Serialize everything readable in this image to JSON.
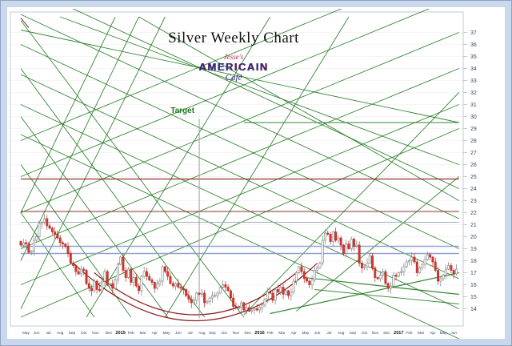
{
  "title": "Silver Weekly Chart",
  "logo": {
    "top": "Jesse's",
    "main": "AMERICAIN",
    "sub": "Café"
  },
  "chart_data": {
    "type": "candlestick",
    "title": "Silver Weekly Chart",
    "instrument": "Silver",
    "timeframe": "Weekly",
    "ylim": [
      13.3,
      38.3
    ],
    "y_ticks": [
      37,
      36,
      35,
      34,
      33,
      32,
      31,
      30,
      29,
      28,
      27,
      26,
      25,
      24,
      23,
      22,
      21,
      20,
      19,
      18,
      17,
      16,
      15,
      14
    ],
    "x_axis_months": [
      {
        "label": "May",
        "weeks": 4,
        "bold": false
      },
      {
        "label": "Jun",
        "weeks": 4,
        "bold": false
      },
      {
        "label": "Jul",
        "weeks": 5,
        "bold": false
      },
      {
        "label": "Aug",
        "weeks": 4,
        "bold": false
      },
      {
        "label": "Sep",
        "weeks": 5,
        "bold": false
      },
      {
        "label": "Oct",
        "weeks": 4,
        "bold": false
      },
      {
        "label": "Nov",
        "weeks": 5,
        "bold": false
      },
      {
        "label": "Dec",
        "weeks": 5,
        "bold": false
      },
      {
        "label": "2015",
        "weeks": 4,
        "bold": true
      },
      {
        "label": "Feb",
        "weeks": 4,
        "bold": false
      },
      {
        "label": "Mar",
        "weeks": 5,
        "bold": false
      },
      {
        "label": "Apr",
        "weeks": 4,
        "bold": false
      },
      {
        "label": "May",
        "weeks": 5,
        "bold": false
      },
      {
        "label": "Jun",
        "weeks": 4,
        "bold": false
      },
      {
        "label": "Jul",
        "weeks": 5,
        "bold": false
      },
      {
        "label": "Aug",
        "weeks": 4,
        "bold": false
      },
      {
        "label": "Sep",
        "weeks": 4,
        "bold": false
      },
      {
        "label": "Oct",
        "weeks": 5,
        "bold": false
      },
      {
        "label": "Nov",
        "weeks": 4,
        "bold": false
      },
      {
        "label": "Dec",
        "weeks": 5,
        "bold": false
      },
      {
        "label": "2016",
        "weeks": 4,
        "bold": true
      },
      {
        "label": "Feb",
        "weeks": 4,
        "bold": false
      },
      {
        "label": "Mar",
        "weeks": 5,
        "bold": false
      },
      {
        "label": "Apr",
        "weeks": 4,
        "bold": false
      },
      {
        "label": "May",
        "weeks": 5,
        "bold": false
      },
      {
        "label": "Jun",
        "weeks": 4,
        "bold": false
      },
      {
        "label": "Jul",
        "weeks": 5,
        "bold": false
      },
      {
        "label": "Aug",
        "weeks": 4,
        "bold": false
      },
      {
        "label": "Sep",
        "weeks": 5,
        "bold": false
      },
      {
        "label": "Oct",
        "weeks": 4,
        "bold": false
      },
      {
        "label": "Nov",
        "weeks": 4,
        "bold": false
      },
      {
        "label": "Dec",
        "weeks": 5,
        "bold": false
      },
      {
        "label": "2017",
        "weeks": 4,
        "bold": true
      },
      {
        "label": "Feb",
        "weeks": 4,
        "bold": false
      },
      {
        "label": "Mar",
        "weeks": 5,
        "bold": false
      },
      {
        "label": "Apr",
        "weeks": 4,
        "bold": false
      },
      {
        "label": "May",
        "weeks": 4,
        "bold": false
      },
      {
        "label": "Jun",
        "weeks": 4,
        "bold": false
      }
    ],
    "first_open": 19.6,
    "weekly_closes": [
      19.3,
      19.5,
      19.4,
      18.7,
      18.8,
      19.7,
      20.0,
      21.1,
      21.2,
      21.5,
      20.9,
      20.7,
      20.4,
      20.2,
      19.9,
      19.5,
      19.4,
      19.2,
      18.6,
      17.8,
      17.6,
      17.1,
      16.9,
      17.3,
      17.2,
      16.1,
      15.7,
      15.5,
      16.3,
      15.6,
      15.5,
      16.3,
      17.1,
      16.0,
      16.1,
      15.7,
      16.4,
      17.7,
      18.3,
      17.2,
      16.6,
      17.3,
      16.2,
      16.6,
      15.9,
      15.5,
      16.7,
      17.1,
      16.7,
      16.4,
      16.2,
      15.7,
      16.1,
      16.3,
      17.5,
      17.1,
      16.7,
      16.1,
      15.9,
      16.1,
      15.8,
      15.7,
      15.6,
      15.1,
      14.8,
      14.5,
      14.7,
      15.3,
      15.2,
      15.3,
      14.5,
      14.6,
      14.9,
      15.1,
      15.1,
      15.3,
      15.8,
      16.0,
      15.8,
      15.5,
      14.9,
      14.2,
      14.1,
      14.1,
      14.5,
      13.9,
      14.1,
      13.8,
      13.9,
      14.0,
      13.9,
      14.1,
      14.3,
      14.8,
      15.4,
      15.3,
      14.7,
      15.6,
      15.4,
      15.8,
      15.2,
      15.5,
      15.1,
      15.4,
      16.3,
      17.0,
      17.5,
      17.1,
      16.5,
      16.3,
      16.0,
      16.4,
      17.2,
      17.4,
      17.8,
      19.7,
      20.3,
      20.2,
      19.6,
      20.4,
      19.7,
      19.9,
      19.3,
      18.6,
      19.4,
      19.0,
      19.8,
      19.2,
      19.3,
      17.8,
      17.4,
      17.5,
      17.8,
      18.4,
      17.4,
      16.6,
      16.5,
      16.8,
      17.1,
      16.1,
      15.7,
      15.9,
      16.8,
      16.7,
      17.0,
      17.1,
      17.5,
      17.9,
      18.0,
      18.3,
      17.9,
      17.0,
      17.4,
      17.7,
      18.1,
      18.5,
      18.3,
      17.9,
      17.2,
      16.3,
      16.5,
      16.8,
      17.3,
      17.6,
      17.2,
      16.9,
      17.3
    ],
    "annotations": {
      "target_label": "Target",
      "target_week": 68,
      "target_price": 30.3
    },
    "vertical_lines": [
      [
        68,
        29.8,
        13.2
      ]
    ],
    "arcs": [
      [
        20,
        113,
        17.8,
        13.0
      ],
      [
        28,
        105,
        17.0,
        13.5
      ]
    ],
    "trend_lines": [
      [
        0,
        41,
        167,
        24,
        "green",
        0.9
      ],
      [
        0,
        38.5,
        167,
        21.5,
        "green",
        0.9
      ],
      [
        0,
        36,
        167,
        19,
        "green",
        0.9
      ],
      [
        0,
        33.5,
        167,
        16.5,
        "green",
        0.9
      ],
      [
        0,
        31,
        167,
        14,
        "green",
        0.9
      ],
      [
        0,
        28.5,
        167,
        11.5,
        "green",
        0.9
      ],
      [
        0,
        37.2,
        167,
        29.5,
        "green",
        0.9
      ],
      [
        15,
        38.3,
        167,
        26,
        "green",
        0.9
      ],
      [
        45,
        38.3,
        167,
        23,
        "green",
        0.9
      ],
      [
        0,
        38,
        85,
        13.3,
        "green",
        0.9
      ],
      [
        0,
        34,
        70,
        13.3,
        "green",
        0.9
      ],
      [
        0,
        30,
        56,
        13.3,
        "green",
        0.9
      ],
      [
        0,
        26,
        42,
        13.3,
        "green",
        0.9
      ],
      [
        0,
        22,
        28,
        13.3,
        "green",
        0.9
      ],
      [
        0,
        13.3,
        167,
        29,
        "green",
        0.9
      ],
      [
        0,
        16,
        167,
        31,
        "green",
        0.9
      ],
      [
        0,
        19,
        167,
        34,
        "green",
        0.9
      ],
      [
        0,
        22,
        167,
        37,
        "green",
        0.9
      ],
      [
        0,
        25,
        167,
        40,
        "green",
        0.9
      ],
      [
        0,
        28,
        167,
        43,
        "green",
        0.9
      ],
      [
        0,
        14,
        55,
        38.3,
        "green",
        0.9
      ],
      [
        0,
        18,
        45,
        38.3,
        "green",
        0.9
      ],
      [
        0,
        22,
        36,
        38.3,
        "green",
        0.9
      ],
      [
        25,
        13.3,
        95,
        38.3,
        "green",
        0.9
      ],
      [
        55,
        13.3,
        125,
        38.3,
        "green",
        0.9
      ],
      [
        85,
        13.5,
        167,
        32,
        "green",
        0.9
      ],
      [
        105,
        13.8,
        167,
        25,
        "green",
        0.9
      ],
      [
        108,
        16.6,
        167,
        15.2,
        "green",
        1.2
      ],
      [
        112,
        15.6,
        167,
        14.4,
        "green",
        0.9
      ],
      [
        95,
        13.6,
        167,
        17.0,
        "green",
        1.2
      ],
      [
        85,
        29.5,
        167,
        29.5,
        "green",
        0.9
      ],
      [
        0,
        38.2,
        3,
        37.4,
        "darkred",
        1.0
      ],
      [
        0,
        24.8,
        167,
        24.8,
        "darkred",
        1.3
      ],
      [
        0,
        22.1,
        167,
        22.1,
        "darkred",
        1.1
      ],
      [
        0,
        19.2,
        167,
        19.2,
        "blue",
        1.5
      ],
      [
        0,
        18.6,
        167,
        18.6,
        "blue",
        1.5
      ],
      [
        0,
        21.2,
        167,
        21.2,
        "gray",
        0.9
      ]
    ],
    "colors": {
      "green": "#217a21",
      "darkred": "#8b1a1a",
      "blue": "#8896cc",
      "gray": "#9aa4b8",
      "grid": "#ececec",
      "axis_text": "#3a4a66",
      "month_text": "#24406e",
      "year_text": "#111111",
      "up_fill": "#fefefe",
      "up_stroke": "#7d7d7d",
      "down_fill": "#d53a32",
      "down_stroke": "#b3261e",
      "vertical_line": "#9a9a9a",
      "plot_border": "#b4bcc8"
    }
  }
}
